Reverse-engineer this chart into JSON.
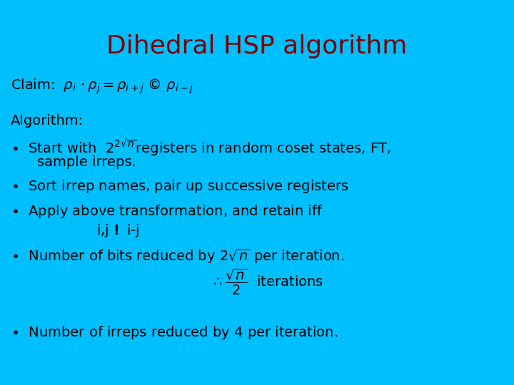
{
  "title": "Dihedral HSP algorithm",
  "title_color": "#800000",
  "title_fontsize": 26,
  "bg_color": "#00BFFF",
  "text_color": "#000000",
  "body_fontsize": 14,
  "claim_fontsize": 14,
  "fig_width": 7.2,
  "fig_height": 5.4,
  "fig_dpi": 100
}
